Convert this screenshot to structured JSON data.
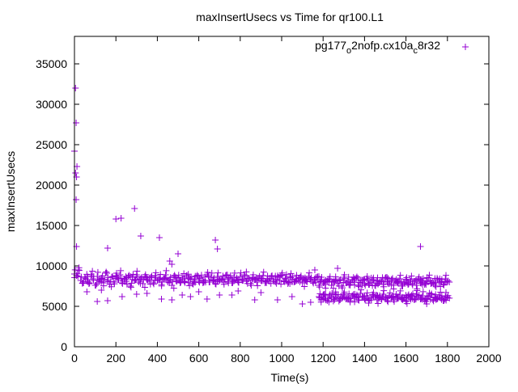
{
  "chart_data": {
    "type": "scatter",
    "title": "maxInsertUsecs vs Time for qr100.L1",
    "xlabel": "Time(s)",
    "ylabel": "maxInsertUsecs",
    "xlim": [
      0,
      2000
    ],
    "ylim": [
      0,
      38400
    ],
    "xticks": [
      0,
      200,
      400,
      600,
      800,
      1000,
      1200,
      1400,
      1600,
      1800,
      2000
    ],
    "yticks": [
      0,
      5000,
      10000,
      15000,
      20000,
      25000,
      30000,
      35000
    ],
    "grid": false,
    "legend_position": "top-right",
    "color": "#9400d3",
    "series": [
      {
        "name": "pg177_o2nofp.cx10a_c8r32",
        "legend_parts": {
          "a": "pg177",
          "b": "o",
          "c": "2nofp.cx10a",
          "d": "c",
          "e": "8r32"
        },
        "main_x_start": 0,
        "main_x_step": 10,
        "main_y": [
          9000,
          8800,
          9500,
          8200,
          7900,
          8600,
          8300,
          7800,
          8900,
          8400,
          7600,
          8700,
          8100,
          8500,
          7900,
          9100,
          8200,
          7700,
          8600,
          8000,
          8800,
          8300,
          8900,
          7900,
          8400,
          8100,
          8700,
          7500,
          8600,
          8200,
          8900,
          8000,
          8400,
          7800,
          8700,
          8300,
          8100,
          8600,
          7900,
          8800,
          8200,
          8500,
          7700,
          8400,
          8900,
          8000,
          8300,
          7600,
          8700,
          8200,
          8500,
          7900,
          8600,
          8100,
          8800,
          8000,
          8400,
          7800,
          8300,
          8700,
          8100,
          8500,
          7900,
          8200,
          8900,
          8000,
          8600,
          8300,
          7800,
          8700,
          8200,
          8400,
          8000,
          8800,
          8100,
          8500,
          7900,
          8600,
          8300,
          8000,
          8700,
          8200,
          8900,
          8100,
          8400,
          7800,
          8600,
          8300,
          8000,
          8500,
          8200,
          8800,
          7900,
          8400,
          8100,
          8700,
          8300,
          8000,
          8600,
          8200,
          8900,
          8100,
          8500,
          7800,
          8700,
          8300,
          8000,
          8400,
          8200,
          8600,
          7900,
          8300,
          8100,
          8700,
          8400,
          8000,
          8200,
          8600,
          7600,
          8300,
          7900,
          7700,
          8100,
          8400,
          7600,
          8000,
          8300,
          7800,
          8200,
          7500,
          8600,
          7900,
          8100,
          7700,
          8300,
          8000,
          8500,
          7600,
          7900,
          8200,
          7800,
          8400,
          7700,
          8000,
          8300,
          7600,
          8100,
          7900,
          8200,
          7700,
          8500,
          8000,
          7800,
          8300,
          7600,
          8100,
          7900,
          8400,
          7500,
          8000,
          8200,
          7700,
          8300,
          7800,
          8100,
          7600,
          8400,
          7900,
          8000,
          7700,
          8200,
          8500,
          7800,
          8000,
          7600,
          8300,
          7900,
          8100,
          7700,
          8400,
          8000
        ],
        "low_x_start": 1180,
        "low_x_step": 10,
        "low_y": [
          6200,
          5800,
          6400,
          6000,
          5700,
          6300,
          6100,
          5900,
          6500,
          6000,
          5800,
          6200,
          6400,
          5900,
          6100,
          5700,
          6300,
          6000,
          6200,
          5800,
          6600,
          6100,
          5900,
          6300,
          5700,
          6000,
          6400,
          6200,
          5800,
          6100,
          5900,
          6500,
          6000,
          5700,
          6300,
          6100,
          5800,
          6200,
          6000,
          6400,
          5900,
          6100,
          5700,
          6300,
          6000,
          6200,
          5800,
          6500,
          6100,
          5900,
          6300,
          5700,
          6000,
          6200,
          6400,
          5800,
          6100,
          5900,
          6300,
          6000,
          5700,
          6200,
          6100
        ],
        "extra_points": [
          [
            0,
            24200
          ],
          [
            5,
            32000
          ],
          [
            8,
            27700
          ],
          [
            5,
            21500
          ],
          [
            10,
            21000
          ],
          [
            12,
            22300
          ],
          [
            8,
            18200
          ],
          [
            10,
            12400
          ],
          [
            160,
            12200
          ],
          [
            200,
            15800
          ],
          [
            225,
            15900
          ],
          [
            290,
            17100
          ],
          [
            320,
            13700
          ],
          [
            410,
            13500
          ],
          [
            460,
            10600
          ],
          [
            470,
            10200
          ],
          [
            500,
            11500
          ],
          [
            680,
            13200
          ],
          [
            690,
            12100
          ],
          [
            1670,
            12400
          ],
          [
            1270,
            9700
          ],
          [
            1160,
            9500
          ],
          [
            110,
            5600
          ],
          [
            160,
            5700
          ],
          [
            230,
            6200
          ],
          [
            300,
            6500
          ],
          [
            420,
            5900
          ],
          [
            470,
            5800
          ],
          [
            560,
            6200
          ],
          [
            640,
            5900
          ],
          [
            700,
            6400
          ],
          [
            760,
            6400
          ],
          [
            790,
            6900
          ],
          [
            870,
            5800
          ],
          [
            980,
            5800
          ],
          [
            1050,
            6200
          ],
          [
            1100,
            5300
          ],
          [
            1140,
            5500
          ],
          [
            1200,
            5900
          ],
          [
            1420,
            5400
          ],
          [
            1600,
            5600
          ],
          [
            1700,
            5300
          ],
          [
            60,
            6800
          ],
          [
            130,
            7000
          ],
          [
            350,
            6600
          ],
          [
            520,
            6400
          ],
          [
            600,
            6800
          ],
          [
            900,
            6700
          ]
        ]
      }
    ]
  }
}
